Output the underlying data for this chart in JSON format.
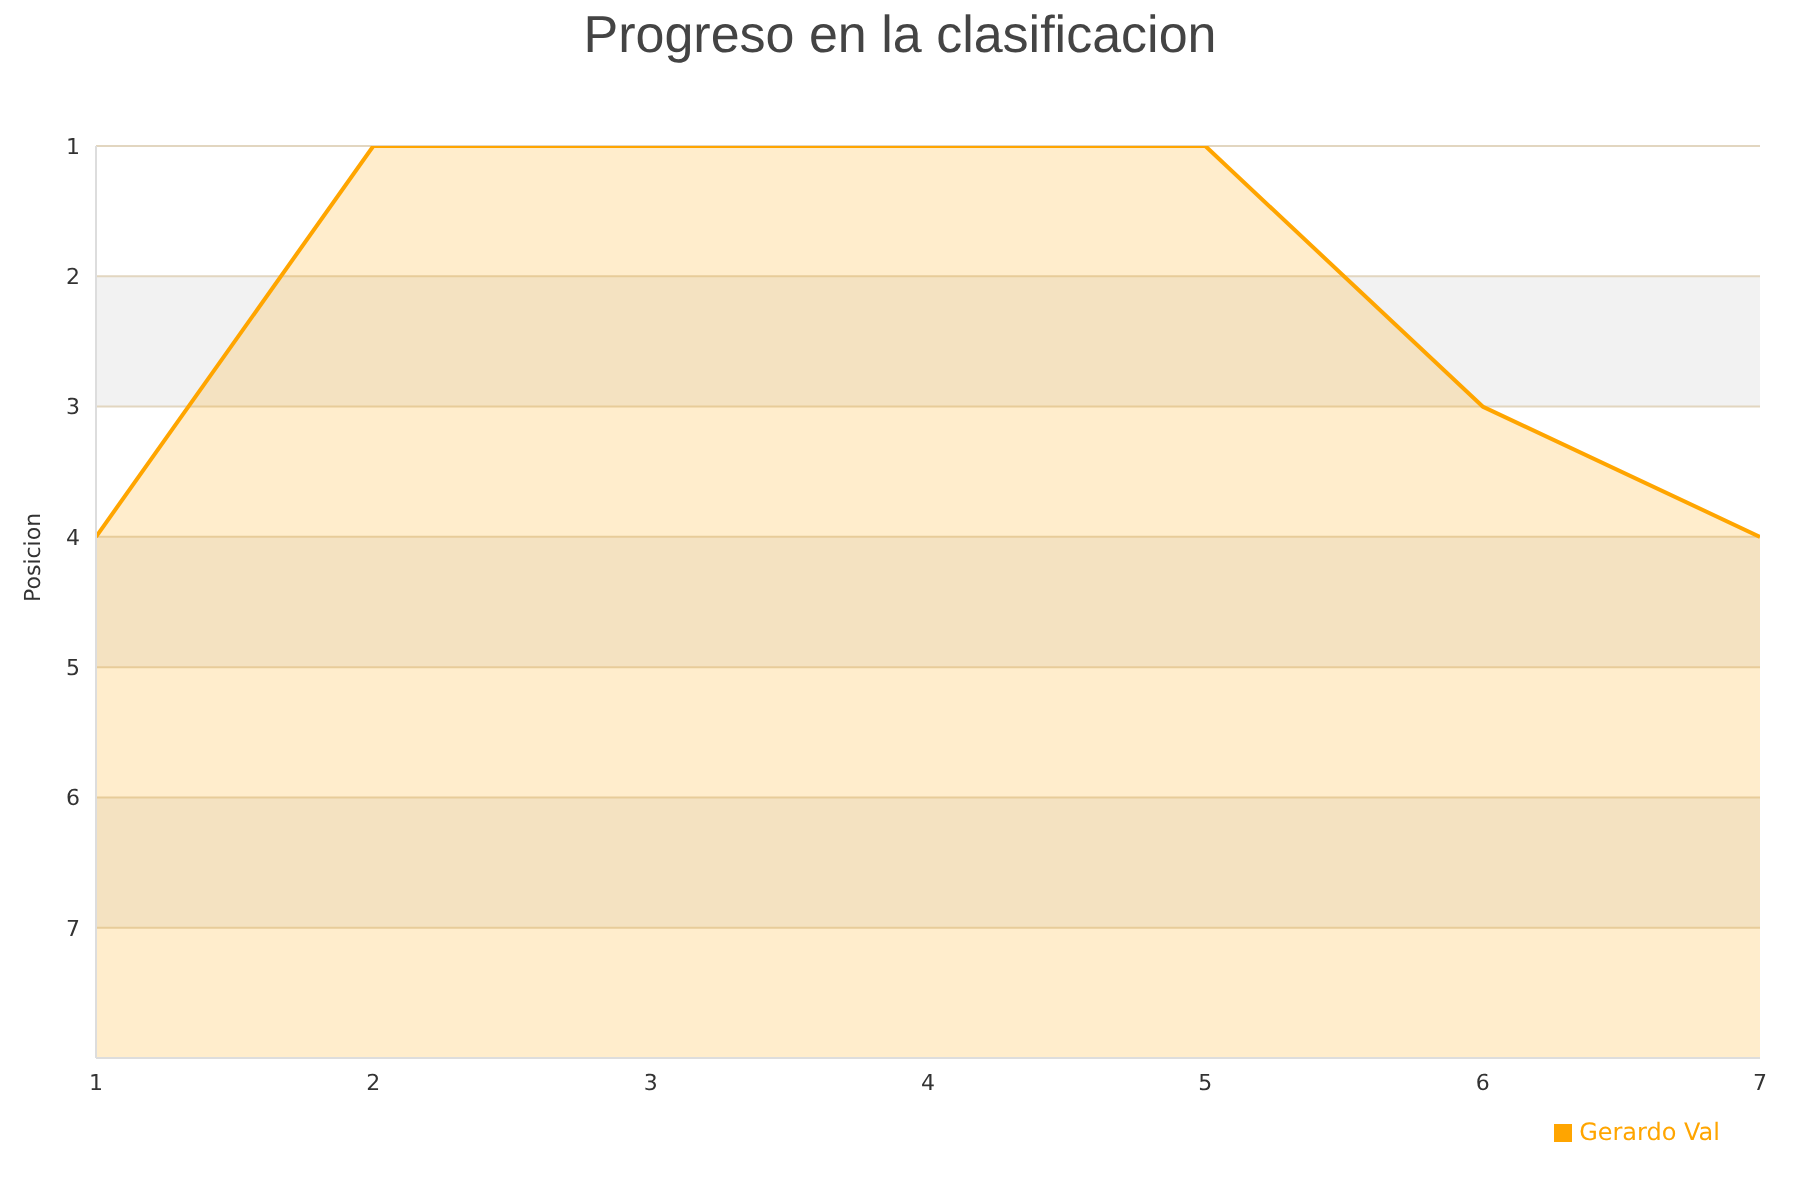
{
  "chart_data": {
    "type": "area",
    "title": "Progreso en la clasificacion",
    "ylabel": "Posicion",
    "x": [
      1,
      2,
      3,
      4,
      5,
      6,
      7
    ],
    "xlim": [
      1,
      7
    ],
    "xticks": [
      1,
      2,
      3,
      4,
      5,
      6,
      7
    ],
    "ylim": [
      8,
      1
    ],
    "yticks": [
      1,
      2,
      3,
      4,
      5,
      6,
      7,
      {
        "value": 8,
        "label": null
      }
    ],
    "series": [
      {
        "name": "Gerardo Val",
        "color": "#ffa500",
        "values": [
          4,
          1,
          1,
          1,
          1,
          3,
          4
        ]
      }
    ],
    "grid": "y",
    "legend": "bottom right",
    "marker": "none",
    "line_style": "solid"
  }
}
